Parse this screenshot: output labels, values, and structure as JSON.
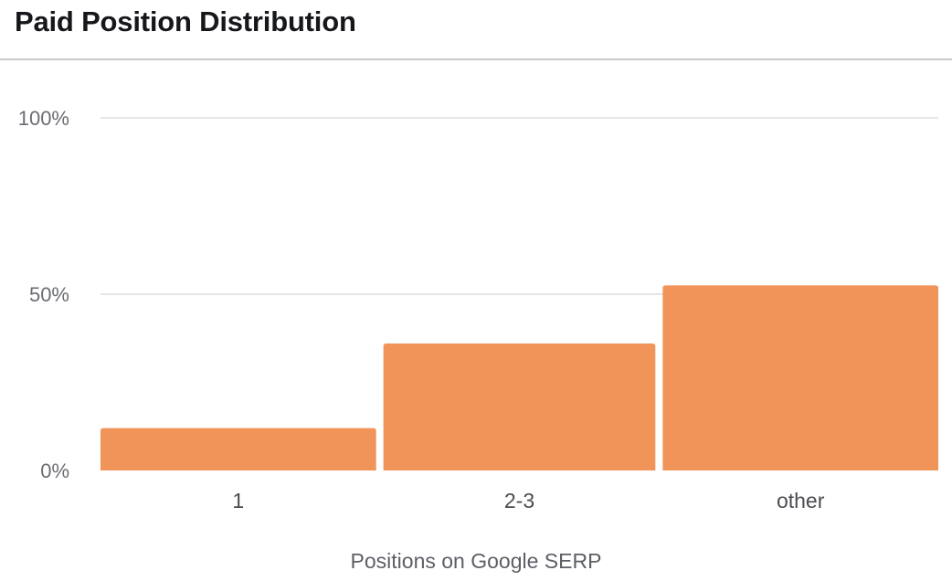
{
  "chart_data": {
    "type": "bar",
    "title": "Paid Position Distribution",
    "xlabel": "Positions on Google SERP",
    "ylabel": "",
    "categories": [
      "1",
      "2-3",
      "other"
    ],
    "values": [
      12,
      36,
      52.5
    ],
    "ylim": [
      0,
      100
    ],
    "yticks": [
      {
        "value": 100,
        "label": "100%"
      },
      {
        "value": 50,
        "label": "50%"
      },
      {
        "value": 0,
        "label": "0%"
      }
    ],
    "grid": true,
    "bar_color": "#f0945a",
    "grid_color": "#dcdde1"
  }
}
